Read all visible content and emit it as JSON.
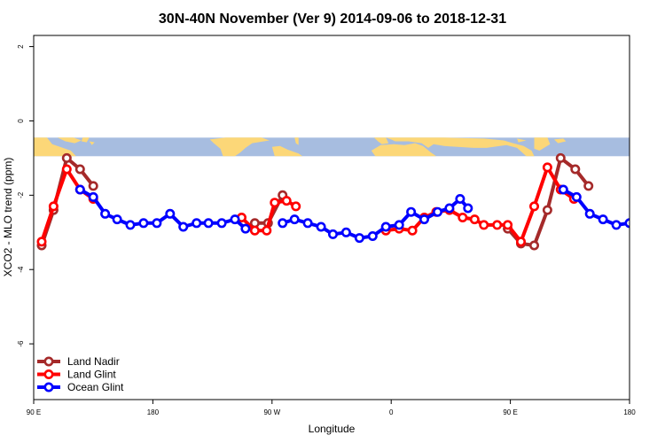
{
  "chart_data": {
    "type": "line",
    "title": "30N-40N November (Ver 9)   2014-09-06 to 2018-12-31",
    "xlabel": "Longitude",
    "ylabel": "XCO2 - MLO trend (ppm)",
    "xlim": [
      90,
      540
    ],
    "ylim": [
      -7.5,
      2.3
    ],
    "x_ticks": [
      {
        "value": 90,
        "label": "90 E"
      },
      {
        "value": 180,
        "label": "180"
      },
      {
        "value": 270,
        "label": "90 W"
      },
      {
        "value": 360,
        "label": "0"
      },
      {
        "value": 450,
        "label": "90 E"
      },
      {
        "value": 540,
        "label": "180"
      }
    ],
    "y_ticks": [
      {
        "value": 2,
        "label": "2"
      },
      {
        "value": 0,
        "label": "0"
      },
      {
        "value": -2,
        "label": "-2"
      },
      {
        "value": -4,
        "label": "-4"
      },
      {
        "value": -6,
        "label": "-6"
      }
    ],
    "map_band": {
      "y_top": -0.45,
      "y_bottom": -0.95,
      "ocean_color": "#a7bde0",
      "land_color": "#fcd778"
    },
    "legend_position": "bottom-left",
    "series": [
      {
        "name": "Land Nadir",
        "color": "#a52a2a",
        "segments": [
          [
            [
              96,
              -3.35
            ],
            [
              105,
              -2.4
            ],
            [
              115,
              -1.0
            ],
            [
              125,
              -1.3
            ],
            [
              135,
              -1.75
            ]
          ],
          [
            [
              257,
              -2.75
            ],
            [
              267,
              -2.75
            ],
            [
              278,
              -2.0
            ]
          ],
          [
            [
              448,
              -2.9
            ],
            [
              458,
              -3.3
            ],
            [
              468,
              -3.35
            ],
            [
              478,
              -2.4
            ],
            [
              488,
              -1.0
            ],
            [
              499,
              -1.3
            ],
            [
              509,
              -1.75
            ]
          ]
        ]
      },
      {
        "name": "Land Glint",
        "color": "#ff0000",
        "segments": [
          [
            [
              96,
              -3.25
            ],
            [
              105,
              -2.3
            ],
            [
              115,
              -1.3
            ],
            [
              125,
              -1.85
            ],
            [
              135,
              -2.1
            ]
          ],
          [
            [
              247,
              -2.6
            ],
            [
              257,
              -2.95
            ],
            [
              266,
              -2.95
            ],
            [
              272,
              -2.2
            ],
            [
              281,
              -2.15
            ],
            [
              288,
              -2.3
            ]
          ],
          [
            [
              356,
              -2.95
            ],
            [
              366,
              -2.9
            ],
            [
              376,
              -2.95
            ],
            [
              385,
              -2.6
            ],
            [
              394,
              -2.45
            ],
            [
              404,
              -2.4
            ],
            [
              414,
              -2.6
            ],
            [
              423,
              -2.65
            ],
            [
              430,
              -2.8
            ],
            [
              440,
              -2.8
            ],
            [
              448,
              -2.8
            ],
            [
              458,
              -3.25
            ],
            [
              468,
              -2.3
            ],
            [
              478,
              -1.25
            ],
            [
              488,
              -1.85
            ],
            [
              498,
              -2.1
            ]
          ]
        ]
      },
      {
        "name": "Ocean Glint",
        "color": "#0000ff",
        "segments": [
          [
            [
              125,
              -1.85
            ],
            [
              135,
              -2.05
            ],
            [
              144,
              -2.5
            ],
            [
              153,
              -2.65
            ],
            [
              163,
              -2.8
            ],
            [
              173,
              -2.75
            ],
            [
              183,
              -2.75
            ],
            [
              193,
              -2.5
            ],
            [
              203,
              -2.85
            ],
            [
              213,
              -2.75
            ],
            [
              222,
              -2.75
            ],
            [
              232,
              -2.75
            ],
            [
              242,
              -2.65
            ],
            [
              250,
              -2.9
            ]
          ],
          [
            [
              278,
              -2.75
            ],
            [
              287,
              -2.65
            ],
            [
              297,
              -2.75
            ],
            [
              307,
              -2.85
            ],
            [
              316,
              -3.05
            ],
            [
              326,
              -3.0
            ],
            [
              336,
              -3.15
            ],
            [
              346,
              -3.1
            ],
            [
              356,
              -2.85
            ],
            [
              366,
              -2.8
            ],
            [
              375,
              -2.45
            ],
            [
              385,
              -2.65
            ],
            [
              395,
              -2.45
            ],
            [
              404,
              -2.35
            ],
            [
              412,
              -2.1
            ],
            [
              418,
              -2.35
            ]
          ],
          [
            [
              490,
              -1.85
            ],
            [
              500,
              -2.05
            ],
            [
              510,
              -2.5
            ],
            [
              520,
              -2.65
            ],
            [
              530,
              -2.8
            ],
            [
              540,
              -2.75
            ]
          ]
        ]
      }
    ]
  }
}
